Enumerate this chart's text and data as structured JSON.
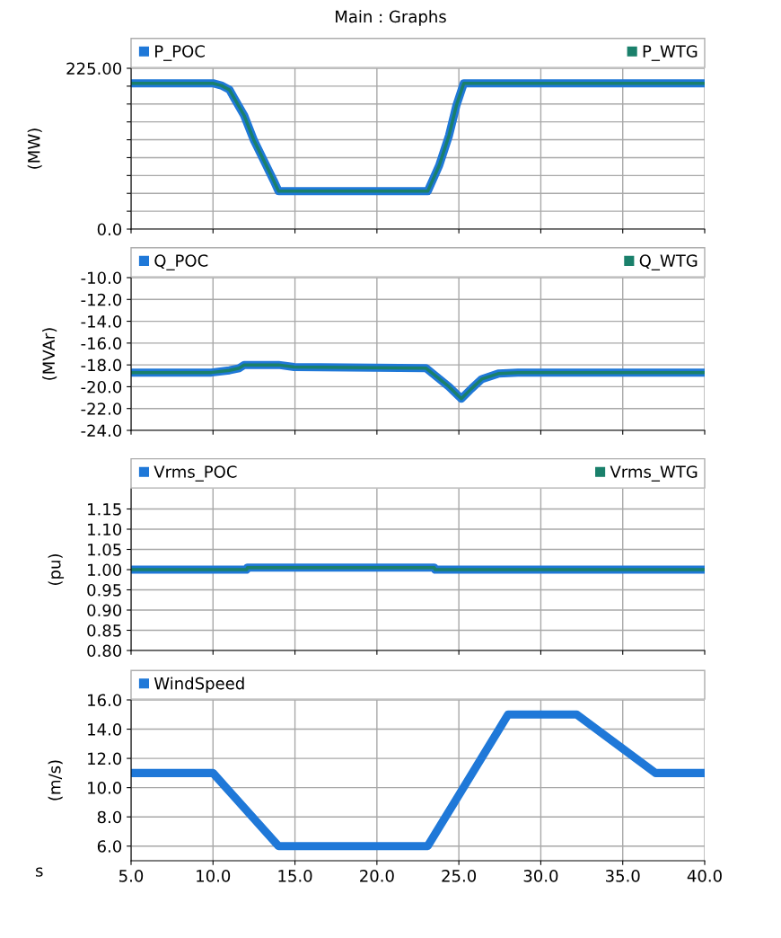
{
  "chart_data": [
    {
      "type": "line",
      "title": "Main : Graphs",
      "ylabel": "(MW)",
      "xlim": [
        5,
        40
      ],
      "xticks": [
        5,
        10,
        15,
        20,
        25,
        30,
        35,
        40
      ],
      "ylim": [
        0,
        225
      ],
      "yticks": [
        {
          "value": 0,
          "label": "0.0"
        },
        {
          "value": 25,
          "label": null
        },
        {
          "value": 50,
          "label": null
        },
        {
          "value": 75,
          "label": null
        },
        {
          "value": 100,
          "label": null
        },
        {
          "value": 125,
          "label": null
        },
        {
          "value": 150,
          "label": null
        },
        {
          "value": 175,
          "label": null
        },
        {
          "value": 200,
          "label": null
        },
        {
          "value": 225,
          "label": "225.00"
        }
      ],
      "tick_labels": "y",
      "grid": true,
      "legend": "top",
      "x": [
        5,
        10,
        10.5,
        11,
        11.3,
        11.9,
        12.5,
        13.1,
        13.7,
        14.0,
        23.1,
        23.8,
        24.4,
        24.85,
        25.3,
        40
      ],
      "series": [
        {
          "name": "P_POC",
          "color": "#1f78d8",
          "values": [
            204,
            204,
            201,
            195,
            183,
            159,
            124,
            96,
            68,
            53,
            53,
            89,
            131,
            173,
            204,
            204
          ]
        },
        {
          "name": "P_WTG",
          "color": "#1a806b",
          "values": [
            204,
            204,
            201,
            195,
            183,
            159,
            124,
            96,
            68,
            53,
            53,
            89,
            131,
            173,
            204,
            204
          ]
        }
      ]
    },
    {
      "type": "line",
      "ylabel": "(MVAr)",
      "xlim": [
        5,
        40
      ],
      "xticks": [
        5,
        10,
        15,
        20,
        25,
        30,
        35,
        40
      ],
      "ylim": [
        -24,
        -10
      ],
      "yticks": [
        {
          "value": -24,
          "label": "-24.0"
        },
        {
          "value": -22,
          "label": "-22.0"
        },
        {
          "value": -20,
          "label": "-20.0"
        },
        {
          "value": -18,
          "label": "-18.0"
        },
        {
          "value": -16,
          "label": "-16.0"
        },
        {
          "value": -14,
          "label": "-14.0"
        },
        {
          "value": -12,
          "label": "-12.0"
        },
        {
          "value": -10,
          "label": "-10.0"
        }
      ],
      "tick_labels": "y",
      "grid": true,
      "legend": "top",
      "x": [
        5,
        9.9,
        11.0,
        11.6,
        11.9,
        14.0,
        14.95,
        23.0,
        24.4,
        25.15,
        25.75,
        26.4,
        27.4,
        28.6,
        40
      ],
      "series": [
        {
          "name": "Q_POC",
          "color": "#1f78d8",
          "values": [
            -18.7,
            -18.7,
            -18.5,
            -18.3,
            -18.0,
            -18.0,
            -18.2,
            -18.3,
            -20.0,
            -21.1,
            -20.2,
            -19.3,
            -18.8,
            -18.7,
            -18.7
          ]
        },
        {
          "name": "Q_WTG",
          "color": "#1a806b",
          "values": [
            -18.7,
            -18.7,
            -18.5,
            -18.3,
            -18.0,
            -18.0,
            -18.2,
            -18.3,
            -20.0,
            -21.1,
            -20.2,
            -19.3,
            -18.8,
            -18.7,
            -18.7
          ]
        }
      ]
    },
    {
      "type": "line",
      "ylabel": "(pu)",
      "xlim": [
        5,
        40
      ],
      "xticks": [
        5,
        10,
        15,
        20,
        25,
        30,
        35,
        40
      ],
      "ylim": [
        0.8,
        1.2
      ],
      "yticks": [
        {
          "value": 0.8,
          "label": "0.80"
        },
        {
          "value": 0.85,
          "label": "0.85"
        },
        {
          "value": 0.9,
          "label": "0.90"
        },
        {
          "value": 0.95,
          "label": "0.95"
        },
        {
          "value": 1.0,
          "label": "1.00"
        },
        {
          "value": 1.05,
          "label": "1.05"
        },
        {
          "value": 1.1,
          "label": "1.10"
        },
        {
          "value": 1.15,
          "label": "1.15"
        }
      ],
      "tick_labels": "y",
      "grid": true,
      "legend": "top",
      "x": [
        5,
        12.05,
        12.1,
        23.5,
        23.55,
        40
      ],
      "series": [
        {
          "name": "Vrms_POC",
          "color": "#1f78d8",
          "values": [
            1.0,
            1.0,
            1.005,
            1.005,
            1.0,
            1.0
          ]
        },
        {
          "name": "Vrms_WTG",
          "color": "#1a806b",
          "values": [
            1.0,
            1.0,
            1.005,
            1.005,
            1.0,
            1.0
          ]
        }
      ]
    },
    {
      "type": "line",
      "ylabel": "(m/s)",
      "xlabel": "s",
      "xlim": [
        5,
        40
      ],
      "xticks": [
        {
          "value": 5,
          "label": "5.0"
        },
        {
          "value": 10,
          "label": "10.0"
        },
        {
          "value": 15,
          "label": "15.0"
        },
        {
          "value": 20,
          "label": "20.0"
        },
        {
          "value": 25,
          "label": "25.0"
        },
        {
          "value": 30,
          "label": "30.0"
        },
        {
          "value": 35,
          "label": "35.0"
        },
        {
          "value": 40,
          "label": "40.0"
        }
      ],
      "ylim": [
        5,
        16
      ],
      "yticks": [
        {
          "value": 6,
          "label": "6.0"
        },
        {
          "value": 8,
          "label": "8.0"
        },
        {
          "value": 10,
          "label": "10.0"
        },
        {
          "value": 12,
          "label": "12.0"
        },
        {
          "value": 14,
          "label": "14.0"
        },
        {
          "value": 16,
          "label": "16.0"
        }
      ],
      "grid": true,
      "legend": "top",
      "x": [
        5,
        10,
        14.0,
        23.1,
        28.0,
        32.2,
        37.0,
        40
      ],
      "series": [
        {
          "name": "WindSpeed",
          "color": "#1f78d8",
          "values": [
            11,
            11,
            6,
            6,
            15,
            15,
            11,
            11
          ]
        }
      ]
    }
  ]
}
